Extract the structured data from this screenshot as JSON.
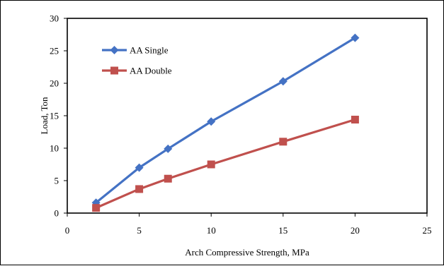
{
  "chart_data": {
    "type": "line",
    "title": "",
    "xlabel": "Arch Compressive Strength, MPa",
    "ylabel": "Load, Ton",
    "xlim": [
      0,
      25
    ],
    "ylim": [
      0,
      30
    ],
    "xticks": [
      0,
      5,
      10,
      15,
      20,
      25
    ],
    "yticks": [
      0,
      5,
      10,
      15,
      20,
      25,
      30
    ],
    "grid": false,
    "legend_position": "top-left",
    "series": [
      {
        "name": "AA Single",
        "color": "#4472C4",
        "marker": "diamond",
        "x": [
          2,
          5,
          7,
          10,
          15,
          20
        ],
        "y": [
          1.6,
          7.0,
          9.9,
          14.1,
          20.3,
          27.0
        ]
      },
      {
        "name": "AA Double",
        "color": "#C0504D",
        "marker": "square",
        "x": [
          2,
          5,
          7,
          10,
          15,
          20
        ],
        "y": [
          0.8,
          3.7,
          5.3,
          7.5,
          11.0,
          14.4
        ]
      }
    ]
  }
}
